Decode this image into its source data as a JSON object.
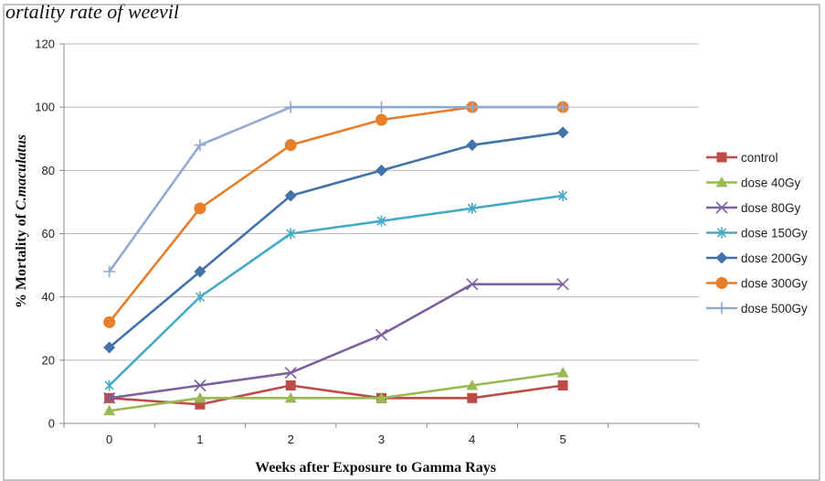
{
  "caption": "ortality rate of weevil",
  "chart_data": {
    "type": "line",
    "x": [
      0,
      1,
      2,
      3,
      4,
      5
    ],
    "xlim": [
      -0.5,
      6.5
    ],
    "ylim": [
      0,
      120
    ],
    "yticks": [
      0,
      20,
      40,
      60,
      80,
      100,
      120
    ],
    "xlabel": "Weeks after Exposure to Gamma Rays",
    "ylabel_prefix": "% Mortality of ",
    "ylabel_species": "C.maculatus",
    "grid": "horizontal",
    "legend_position": "right",
    "series": [
      {
        "name": "control",
        "color": "#be4b48",
        "marker": "square",
        "values": [
          8,
          6,
          12,
          8,
          8,
          12
        ]
      },
      {
        "name": "dose 40Gy",
        "color": "#98b954",
        "marker": "triangle",
        "values": [
          4,
          8,
          8,
          8,
          12,
          16
        ]
      },
      {
        "name": "dose 80Gy",
        "color": "#7d60a0",
        "marker": "x",
        "values": [
          8,
          12,
          16,
          28,
          44,
          44
        ]
      },
      {
        "name": "dose 150Gy",
        "color": "#46aac5",
        "marker": "star",
        "values": [
          12,
          40,
          60,
          64,
          68,
          72
        ]
      },
      {
        "name": "dose 200Gy",
        "color": "#4272a8",
        "marker": "diamond",
        "values": [
          24,
          48,
          72,
          80,
          88,
          92
        ]
      },
      {
        "name": "dose 300Gy",
        "color": "#e67e2a",
        "marker": "circle",
        "values": [
          32,
          68,
          88,
          96,
          100,
          100
        ]
      },
      {
        "name": "dose 500Gy",
        "color": "#93a9cf",
        "marker": "plus",
        "values": [
          48,
          88,
          100,
          100,
          100,
          100
        ]
      }
    ]
  }
}
